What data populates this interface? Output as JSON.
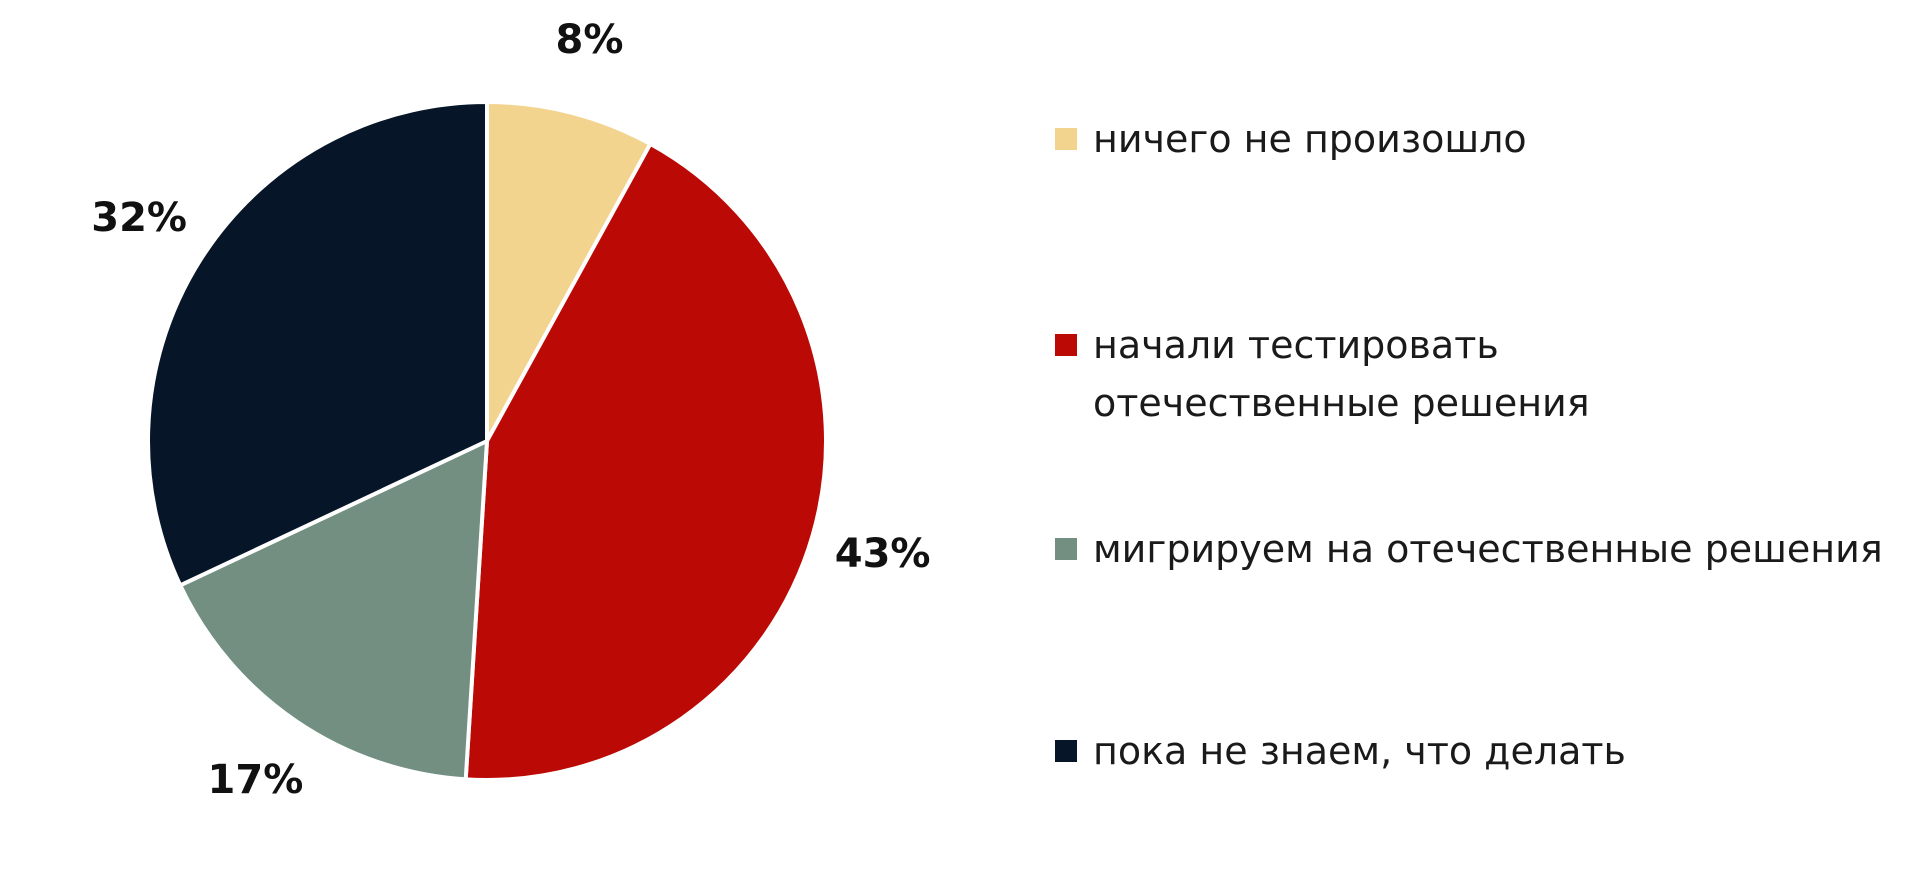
{
  "chart_data": {
    "type": "pie",
    "categories": [
      "ничего не произошло",
      "начали тестировать отечественные решения",
      "мигрируем на отечественные решения",
      "пока не знаем, что делать"
    ],
    "values": [
      8,
      43,
      17,
      32
    ],
    "value_labels": [
      "8%",
      "43%",
      "17%",
      "32%"
    ],
    "colors": [
      "#f2d48f",
      "#bb0a05",
      "#738f82",
      "#061628"
    ]
  }
}
